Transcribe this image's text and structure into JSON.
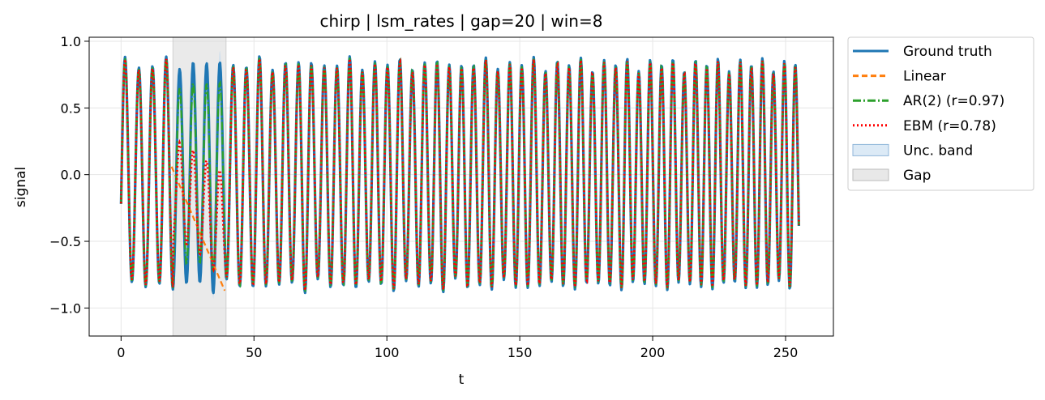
{
  "chart_data": {
    "type": "line",
    "title": "chirp | lsm_rates | gap=20 | win=8",
    "xlabel": "t",
    "ylabel": "signal",
    "xlim": [
      -12,
      268
    ],
    "ylim": [
      -1.21,
      1.03
    ],
    "xticks": [
      0,
      50,
      100,
      150,
      200,
      250
    ],
    "xtick_labels": [
      "0",
      "50",
      "100",
      "150",
      "200",
      "250"
    ],
    "yticks": [
      -1.0,
      -0.5,
      0.0,
      0.5,
      1.0
    ],
    "ytick_labels": [
      "−1.0",
      "−0.5",
      "0.0",
      "0.5",
      "1.0"
    ],
    "grid": true,
    "legend_position": "outside-right-top",
    "gap_region": {
      "start": 19.5,
      "end": 39.5,
      "label": "Gap"
    },
    "legend": [
      {
        "label": "Ground truth",
        "color": "#1f77b4",
        "style": "solid"
      },
      {
        "label": "Linear",
        "color": "#ff7f0e",
        "style": "dashed"
      },
      {
        "label": "AR(2) (r=0.97)",
        "color": "#2ca02c",
        "style": "dashdot"
      },
      {
        "label": "EBM (r=0.78)",
        "color": "#ff0000",
        "style": "dotted"
      },
      {
        "label": "Unc. band",
        "color": "#bfd8ee",
        "style": "band"
      },
      {
        "label": "Gap",
        "color": "#d9d9d9",
        "style": "patch"
      }
    ],
    "series": [
      {
        "name": "Ground truth",
        "t_start": 0,
        "t_end": 255,
        "signal": "chirp",
        "approx_amplitude": 0.85,
        "approx_period_start": 5.2,
        "approx_period_end": 4.1
      },
      {
        "name": "Linear",
        "segment": {
          "t": [
            19,
            39
          ],
          "values": [
            0.06,
            -0.87
          ]
        }
      },
      {
        "name": "AR(2) (r=0.97)",
        "gap_fit": "close to ground truth, slightly reduced amplitude"
      },
      {
        "name": "EBM (r=0.78)",
        "gap_fit": "partially matches ground truth with reduced amplitude"
      }
    ]
  }
}
